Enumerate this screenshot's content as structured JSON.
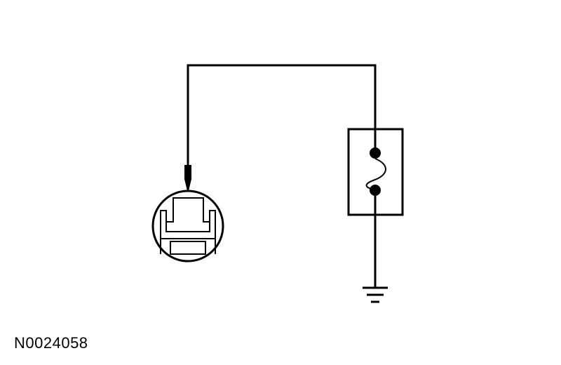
{
  "figure": {
    "id": "N0024058"
  },
  "colors": {
    "line": "#000000",
    "background": "#ffffff"
  },
  "components": {
    "connector": "circular-connector-icon",
    "probe": "test-probe-icon",
    "fuse": "fuse-icon",
    "ground": "ground-icon"
  }
}
